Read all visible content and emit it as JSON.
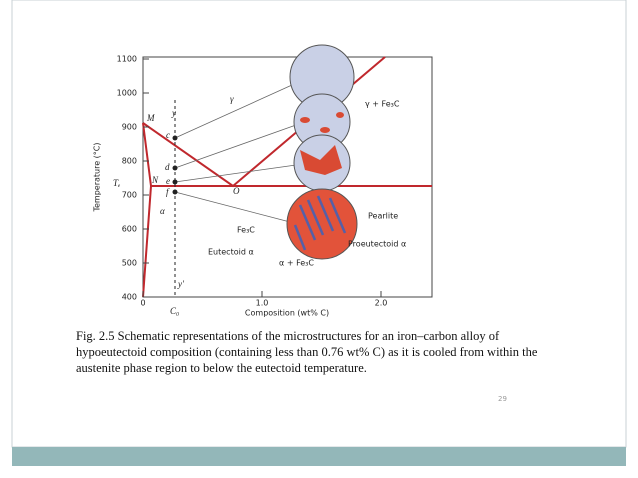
{
  "figure": {
    "y_axis_label": "Temperature (°C)",
    "y_ticks": [
      "1100",
      "1000",
      "900",
      "800",
      "700",
      "600",
      "500",
      "400"
    ],
    "x_ticks": [
      "0",
      "1.0",
      "2.0"
    ],
    "x_axis_label": "Composition (wt% C)",
    "labels": {
      "gamma": "γ",
      "gamma_fe3c": "γ + Fe₃C",
      "alpha": "α",
      "alpha_fe3c": "α + Fe₃C",
      "pearlite": "Pearlite",
      "fe3c": "Fe₃C",
      "eutectoid_alpha": "Eutectoid α",
      "proeutectoid_alpha": "Proeutectoid α",
      "m": "M",
      "n": "N",
      "o": "O",
      "c": "c",
      "d": "d",
      "e": "e",
      "f": "f",
      "y": "y",
      "y_prime": "y′",
      "te": "Tₑ",
      "c0": "C₀"
    }
  },
  "caption": {
    "lines": [
      "Fig. 2.5 Schematic representations of the microstructures for an iron–carbon alloy of",
      "hypoeutectoid composition (containing less than 0.76 wt% C) as it is cooled from within the",
      "austenite phase region to below the eutectoid temperature."
    ]
  },
  "page_number": "29"
}
